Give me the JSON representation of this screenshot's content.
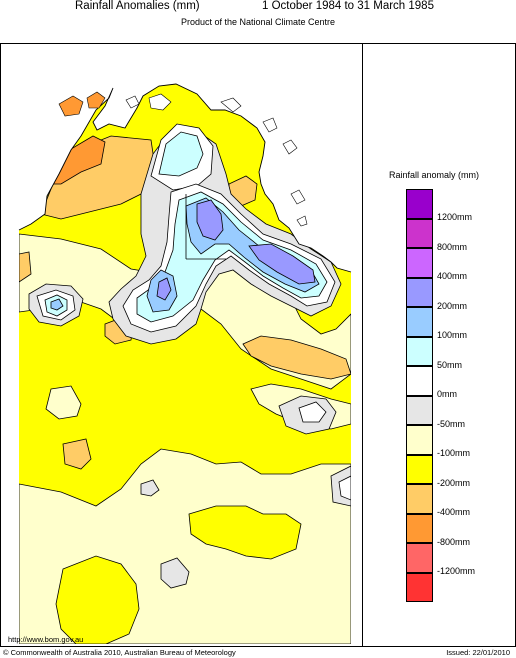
{
  "header": {
    "title_left": "Rainfall Anomalies (mm)",
    "title_right": "1 October 1984 to 31 March 1985",
    "subtitle": "Product of the National Climate Centre"
  },
  "legend": {
    "title": "Rainfall anomaly (mm)",
    "items": [
      {
        "label": "1200mm",
        "color": "#9900cc"
      },
      {
        "label": "800mm",
        "color": "#cc33cc"
      },
      {
        "label": "400mm",
        "color": "#cc66ff"
      },
      {
        "label": "200mm",
        "color": "#9999ff"
      },
      {
        "label": "100mm",
        "color": "#99ccff"
      },
      {
        "label": "50mm",
        "color": "#ccffff"
      },
      {
        "label": "0mm",
        "color": "#ffffff"
      },
      {
        "label": "-50mm",
        "color": "#e6e6e6"
      },
      {
        "label": "-100mm",
        "color": "#ffffcc"
      },
      {
        "label": "-200mm",
        "color": "#ffff00"
      },
      {
        "label": "-400mm",
        "color": "#ffcc66"
      },
      {
        "label": "-800mm",
        "color": "#ff9933"
      },
      {
        "label": "-1200mm",
        "color": "#ff6666"
      },
      {
        "label": "",
        "color": "#ff3333"
      }
    ]
  },
  "footer": {
    "url": "http://www.bom.gov.au",
    "copyright": "© Commonwealth of Australia 2010, Australian Bureau of Meteorology",
    "issued": "Issued: 22/01/2010"
  }
}
